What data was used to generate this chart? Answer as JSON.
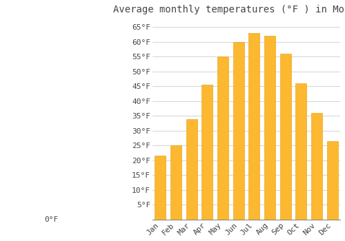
{
  "title": "Average monthly temperatures (°F ) in Moineşti",
  "months": [
    "Jan",
    "Feb",
    "Mar",
    "Apr",
    "May",
    "Jun",
    "Jul",
    "Aug",
    "Sep",
    "Oct",
    "Nov",
    "Dec"
  ],
  "values": [
    21.5,
    25.0,
    34.0,
    45.5,
    55.0,
    60.0,
    63.0,
    62.0,
    56.0,
    46.0,
    36.0,
    26.5
  ],
  "bar_color": "#FBB830",
  "bar_edge_color": "#E8A820",
  "background_color": "#FFFFFF",
  "grid_color": "#CCCCCC",
  "text_color": "#444444",
  "ylim": [
    0,
    68
  ],
  "yticks": [
    5,
    10,
    15,
    20,
    25,
    30,
    35,
    40,
    45,
    50,
    55,
    60,
    65
  ],
  "ytick_labels": [
    "5°F",
    "10°F",
    "15°F",
    "20°F",
    "25°F",
    "30°F",
    "35°F",
    "40°F",
    "45°F",
    "50°F",
    "55°F",
    "60°F",
    "65°F"
  ],
  "bottom_label": "0°F",
  "title_fontsize": 10,
  "tick_fontsize": 8,
  "font_family": "monospace"
}
